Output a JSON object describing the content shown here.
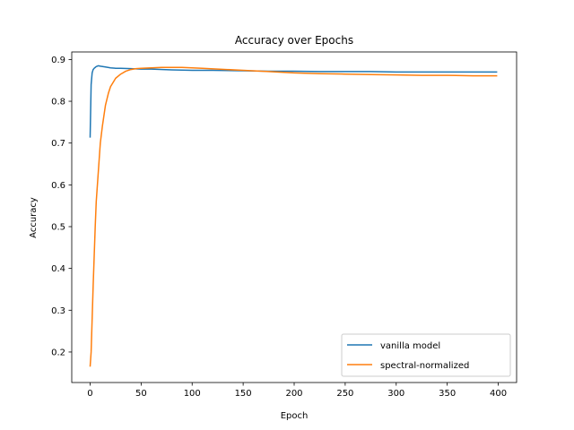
{
  "chart_data": {
    "type": "line",
    "title": "Accuracy over Epochs",
    "xlabel": "Epoch",
    "ylabel": "Accuracy",
    "xlim": [
      -18,
      418
    ],
    "ylim": [
      0.127,
      0.918
    ],
    "xticks": [
      0,
      50,
      100,
      150,
      200,
      250,
      300,
      350,
      400
    ],
    "yticks": [
      0.2,
      0.3,
      0.4,
      0.5,
      0.6,
      0.7,
      0.8,
      0.9
    ],
    "grid": false,
    "legend_position": "lower-right",
    "series": [
      {
        "name": "vanilla model",
        "color": "#1f77b4",
        "x": [
          0,
          1,
          2,
          3,
          4,
          5,
          6,
          8,
          10,
          15,
          20,
          25,
          30,
          40,
          50,
          60,
          80,
          100,
          120,
          150,
          175,
          200,
          225,
          250,
          275,
          300,
          325,
          350,
          375,
          399
        ],
        "y": [
          0.713,
          0.84,
          0.868,
          0.876,
          0.879,
          0.881,
          0.883,
          0.885,
          0.884,
          0.882,
          0.88,
          0.879,
          0.879,
          0.878,
          0.877,
          0.877,
          0.875,
          0.874,
          0.874,
          0.873,
          0.872,
          0.872,
          0.871,
          0.871,
          0.871,
          0.87,
          0.87,
          0.87,
          0.87,
          0.87
        ]
      },
      {
        "name": "spectral-normalized",
        "color": "#ff7f0e",
        "x": [
          0,
          1,
          2,
          3,
          4,
          5,
          6,
          8,
          10,
          12,
          15,
          18,
          20,
          25,
          30,
          35,
          40,
          45,
          50,
          60,
          70,
          80,
          90,
          100,
          110,
          125,
          150,
          175,
          200,
          225,
          250,
          275,
          300,
          325,
          350,
          375,
          399
        ],
        "y": [
          0.165,
          0.2,
          0.28,
          0.36,
          0.43,
          0.5,
          0.56,
          0.63,
          0.7,
          0.74,
          0.79,
          0.82,
          0.835,
          0.855,
          0.865,
          0.872,
          0.876,
          0.878,
          0.879,
          0.88,
          0.881,
          0.881,
          0.881,
          0.88,
          0.879,
          0.877,
          0.874,
          0.871,
          0.868,
          0.866,
          0.865,
          0.864,
          0.863,
          0.862,
          0.862,
          0.861,
          0.861
        ]
      }
    ]
  }
}
